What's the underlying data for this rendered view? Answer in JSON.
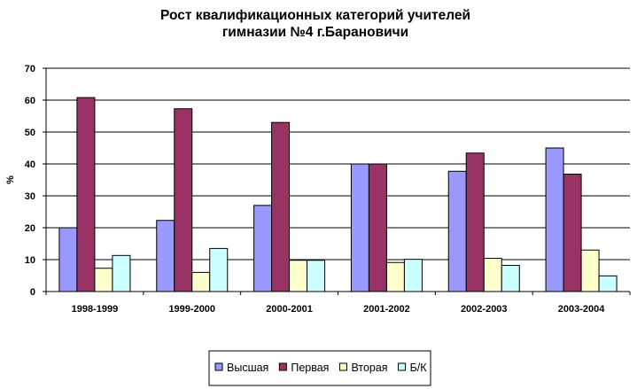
{
  "chart_data": {
    "type": "bar",
    "title_lines": [
      "Рост квалификационных категорий учителей",
      "гимназии №4 г.Барановичи"
    ],
    "ylabel": "%",
    "xlabel": "",
    "ylim": [
      0,
      70
    ],
    "yticks": [
      0,
      10,
      20,
      30,
      40,
      50,
      60,
      70
    ],
    "grid": true,
    "legend_position": "bottom",
    "categories": [
      "1998-1999",
      "1999-2000",
      "2000-2001",
      "2001-2002",
      "2002-2003",
      "2003-2004"
    ],
    "series": [
      {
        "name": "Высшая",
        "color": "#9999FF",
        "values": [
          20,
          22.3,
          27,
          40,
          37.7,
          45
        ]
      },
      {
        "name": "Первая",
        "color": "#993366",
        "values": [
          60.8,
          57.3,
          53,
          40,
          43.4,
          36.8
        ]
      },
      {
        "name": "Вторая",
        "color": "#FFFFCC",
        "values": [
          7.3,
          6,
          9.8,
          9.1,
          10.4,
          13
        ]
      },
      {
        "name": "Б/К",
        "color": "#CCFFFF",
        "values": [
          11.3,
          13.5,
          9.8,
          10.1,
          8.2,
          4.9
        ]
      }
    ]
  }
}
